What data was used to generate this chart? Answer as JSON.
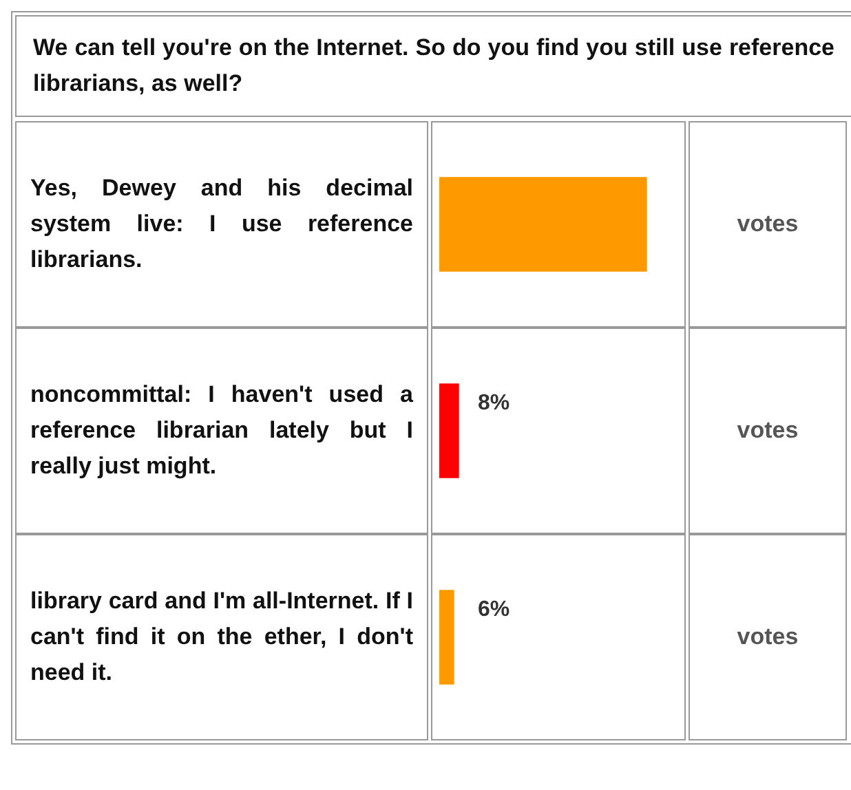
{
  "chart_data": {
    "type": "bar",
    "orientation": "horizontal",
    "title": "We can tell you're on the Internet. So do you find you still use reference librarians, as well?",
    "categories": [
      "Yes, Dewey and his decimal system live: I use reference librarians.",
      "noncommittal: I haven't used a reference librarian lately but I really just might.",
      "library card and I'm all-Internet. If I can't find it on the ether, I don't need it."
    ],
    "values": [
      86,
      8,
      6
    ],
    "colors": [
      "#ff9900",
      "#ff0000",
      "#ff9900"
    ],
    "value_labels": [
      null,
      "8%",
      "6%"
    ],
    "annotations": [
      "votes",
      "votes",
      "votes"
    ]
  }
}
